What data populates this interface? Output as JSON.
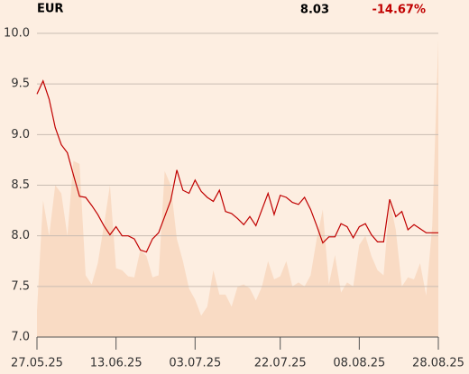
{
  "chart_data": {
    "type": "line",
    "title": "EUR",
    "annotations": [
      {
        "text": "8.03",
        "color": "#000000"
      },
      {
        "text": "-14.67%",
        "color": "#c00000"
      }
    ],
    "categories": [
      "27.05.25",
      null,
      null,
      null,
      null,
      null,
      null,
      null,
      null,
      null,
      null,
      null,
      null,
      "13.06.25",
      null,
      null,
      null,
      null,
      null,
      null,
      null,
      null,
      null,
      null,
      null,
      null,
      "03.07.25",
      null,
      null,
      null,
      null,
      null,
      null,
      null,
      null,
      null,
      null,
      null,
      null,
      null,
      "22.07.25",
      null,
      null,
      null,
      null,
      null,
      null,
      null,
      null,
      null,
      null,
      null,
      null,
      "08.08.25",
      null,
      null,
      null,
      null,
      null,
      null,
      null,
      null,
      null,
      null,
      null,
      null,
      "28.08.25"
    ],
    "series": [
      {
        "type": "area",
        "color": "#f9dbc4",
        "values": [
          7.26,
          8.35,
          8.0,
          8.5,
          8.42,
          8.0,
          8.74,
          8.71,
          7.61,
          7.52,
          7.73,
          8.1,
          8.5,
          7.68,
          7.66,
          7.6,
          7.59,
          7.86,
          7.8,
          7.59,
          7.61,
          8.64,
          8.5,
          7.97,
          7.75,
          7.48,
          7.37,
          7.21,
          7.3,
          7.66,
          7.42,
          7.42,
          7.3,
          7.5,
          7.52,
          7.48,
          7.36,
          7.5,
          7.75,
          7.57,
          7.6,
          7.75,
          7.5,
          7.54,
          7.5,
          7.61,
          7.97,
          8.26,
          7.52,
          7.81,
          7.44,
          7.54,
          7.5,
          7.91,
          8.0,
          7.8,
          7.66,
          7.61,
          8.35,
          8.06,
          7.5,
          7.59,
          7.57,
          7.73,
          7.41,
          8.1,
          9.93
        ]
      },
      {
        "type": "line",
        "color": "#c00000",
        "values": [
          9.4,
          9.53,
          9.35,
          9.07,
          8.9,
          8.82,
          8.6,
          8.39,
          8.38,
          8.3,
          8.21,
          8.1,
          8.01,
          8.09,
          8.0,
          8.0,
          7.97,
          7.86,
          7.84,
          7.97,
          8.03,
          8.19,
          8.35,
          8.65,
          8.45,
          8.42,
          8.55,
          8.44,
          8.38,
          8.34,
          8.45,
          8.24,
          8.22,
          8.17,
          8.11,
          8.19,
          8.1,
          8.26,
          8.42,
          8.21,
          8.4,
          8.38,
          8.33,
          8.31,
          8.38,
          8.26,
          8.1,
          7.93,
          7.99,
          7.99,
          8.12,
          8.09,
          7.98,
          8.09,
          8.12,
          8.01,
          7.94,
          7.94,
          8.36,
          8.19,
          8.24,
          8.06,
          8.11,
          8.07,
          8.03,
          8.03,
          8.03
        ]
      }
    ],
    "ylim": [
      7.0,
      10.0
    ],
    "yticks": [
      {
        "value": 7,
        "label": "7.0"
      },
      7.5,
      {
        "value": 8,
        "label": "8.0"
      },
      8.5,
      {
        "value": 9,
        "label": "9.0"
      },
      9.5,
      {
        "value": 10,
        "label": "10.0"
      }
    ],
    "grid": true
  }
}
